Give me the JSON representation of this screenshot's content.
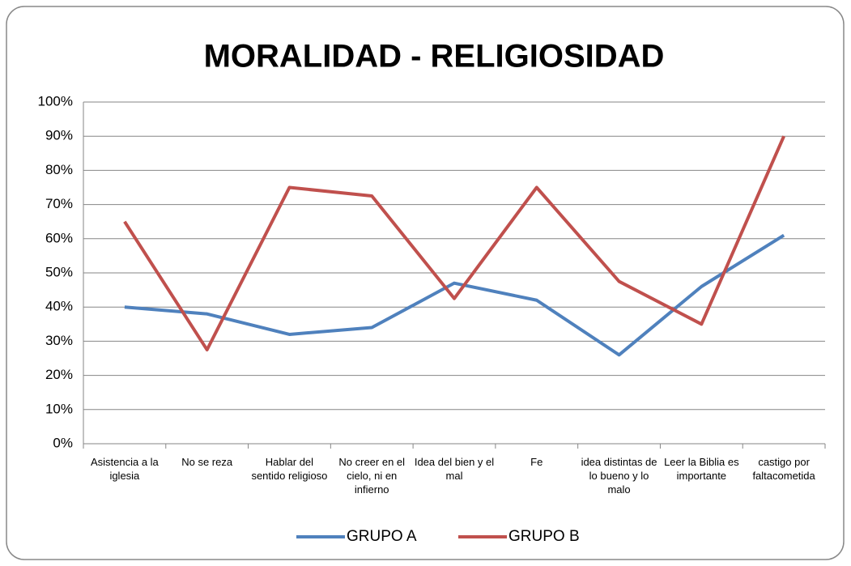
{
  "chart_data": {
    "type": "line",
    "title": "MORALIDAD - RELIGIOSIDAD",
    "categories": [
      "Asistencia a la iglesia",
      "No se reza",
      "Hablar del sentido religioso",
      "No creer en el cielo, ni en infierno",
      "Idea del bien y el mal",
      "Fe",
      "idea distintas de lo bueno y lo malo",
      "Leer la Biblia es importante",
      "castigo por faltacometida"
    ],
    "series": [
      {
        "name": "GRUPO A",
        "color": "#4f81bd",
        "values": [
          40,
          38,
          32,
          34,
          47,
          42,
          26,
          46,
          61
        ]
      },
      {
        "name": "GRUPO B",
        "color": "#c0504d",
        "values": [
          65,
          27.5,
          75,
          72.5,
          42.5,
          75,
          47.5,
          35,
          90
        ]
      }
    ],
    "ylim": [
      0,
      100
    ],
    "yticks": [
      {
        "value": 0,
        "label": "0%"
      },
      {
        "value": 10,
        "label": "10%"
      },
      {
        "value": 20,
        "label": "20%"
      },
      {
        "value": 30,
        "label": "30%"
      },
      {
        "value": 40,
        "label": "40%"
      },
      {
        "value": 50,
        "label": "50%"
      },
      {
        "value": 60,
        "label": "60%"
      },
      {
        "value": 70,
        "label": "70%"
      },
      {
        "value": 80,
        "label": "80%"
      },
      {
        "value": 90,
        "label": "90%"
      },
      {
        "value": 100,
        "label": "100%"
      }
    ],
    "grid": true,
    "legend": "bottom"
  }
}
